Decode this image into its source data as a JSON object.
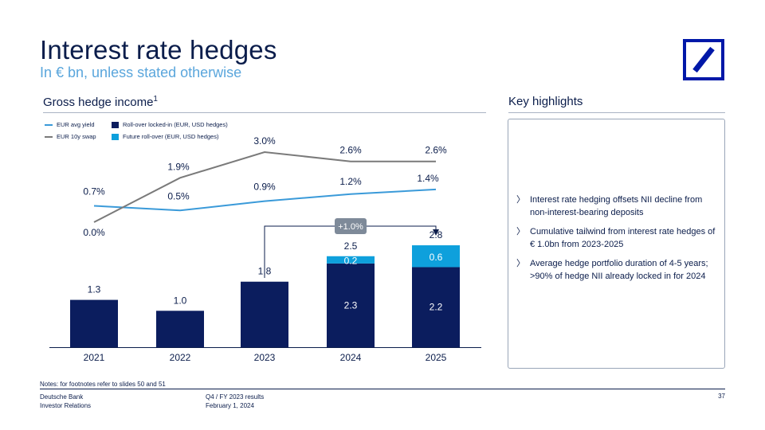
{
  "header": {
    "title": "Interest rate hedges",
    "subtitle": "In € bn, unless stated otherwise"
  },
  "logo": {
    "name": "deutsche-bank-logo",
    "color": "#0018a8"
  },
  "left_section": {
    "title": "Gross hedge income",
    "footnote_mark": "1"
  },
  "right_section": {
    "title": "Key highlights",
    "bullets": [
      "Interest rate hedging offsets NII decline from non-interest-bearing deposits",
      "Cumulative tailwind from interest rate hedges of € 1.0bn from 2023-2025",
      "Average hedge portfolio duration of 4-5 years; >90% of hedge NII already locked in for 2024"
    ],
    "bullet_icon": "chevron-right-icon"
  },
  "legend": {
    "eur_avg_yield": "EUR avg yield",
    "eur_10y_swap": "EUR 10y swap",
    "rollover_locked": "Roll-over locked-in (EUR, USD hedges)",
    "future_rollover": "Future roll-over (EUR, USD hedges)"
  },
  "colors": {
    "navy": "#0b1d5e",
    "light_blue": "#0ea0dc",
    "avg_yield_line": "#3a9ad9",
    "swap_line": "#7a7a7a",
    "bracket_badge": "#7e8a99"
  },
  "chart_data": {
    "type": "bar",
    "categories": [
      "2021",
      "2022",
      "2023",
      "2024",
      "2025"
    ],
    "series": [
      {
        "name": "Roll-over locked-in (EUR, USD hedges)",
        "values": [
          1.3,
          1.0,
          1.8,
          2.3,
          2.2
        ]
      },
      {
        "name": "Future roll-over (EUR, USD hedges)",
        "values": [
          0,
          0,
          0,
          0.2,
          0.6
        ]
      }
    ],
    "totals": [
      1.3,
      1.0,
      1.8,
      2.5,
      2.8
    ],
    "total_labels": [
      "1.3",
      "1.0",
      "1.8",
      "2.5",
      "2.8"
    ],
    "segment_labels": {
      "rollover_locked": [
        "",
        "",
        "",
        "2.3",
        "2.2"
      ],
      "future_rollover": [
        "",
        "",
        "",
        "0.2",
        "0.6"
      ]
    },
    "lines": [
      {
        "name": "EUR avg yield",
        "values": [
          0.7,
          0.5,
          0.9,
          1.2,
          1.4
        ],
        "labels": [
          "0.7%",
          "0.5%",
          "0.9%",
          "1.2%",
          "1.4%"
        ]
      },
      {
        "name": "EUR 10y swap",
        "values": [
          0.0,
          1.9,
          3.0,
          2.6,
          2.6
        ],
        "labels": [
          "0.0%",
          "1.9%",
          "3.0%",
          "2.6%",
          "2.6%"
        ]
      }
    ],
    "annotation": {
      "text": "+1.0%",
      "from": "2023",
      "to": "2025"
    },
    "ylim_bars": [
      0,
      3.2
    ],
    "ylim_lines": [
      0,
      3.0
    ],
    "legend_position": "top-left",
    "grid": false
  },
  "footer": {
    "notes": "Notes: for footnotes refer to slides 50 and 51",
    "company": "Deutsche Bank",
    "department": "Investor Relations",
    "report": "Q4 / FY 2023 results",
    "date": "February 1, 2024",
    "page": "37"
  }
}
